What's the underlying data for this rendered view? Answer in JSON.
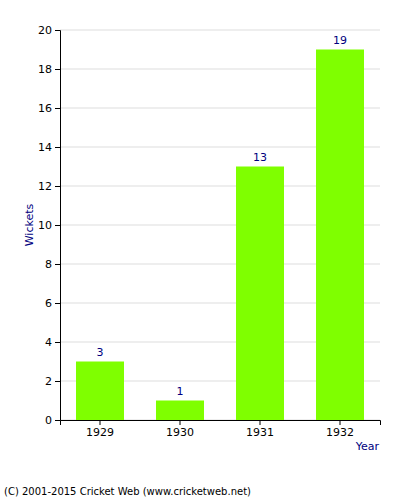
{
  "chart_data": {
    "type": "bar",
    "x_label": "Year",
    "y_label": "Wickets",
    "categories": [
      "1929",
      "1930",
      "1931",
      "1932"
    ],
    "values": [
      3,
      1,
      13,
      19
    ],
    "color": "#7fff00",
    "ylim": [
      0,
      20
    ],
    "yticks": [
      0,
      2,
      4,
      6,
      8,
      10,
      12,
      14,
      16,
      18,
      20
    ],
    "grid": true,
    "data_labels": true,
    "annotations": [
      "(C) 2001-2015 Cricket Web (www.cricketweb.net)"
    ]
  }
}
